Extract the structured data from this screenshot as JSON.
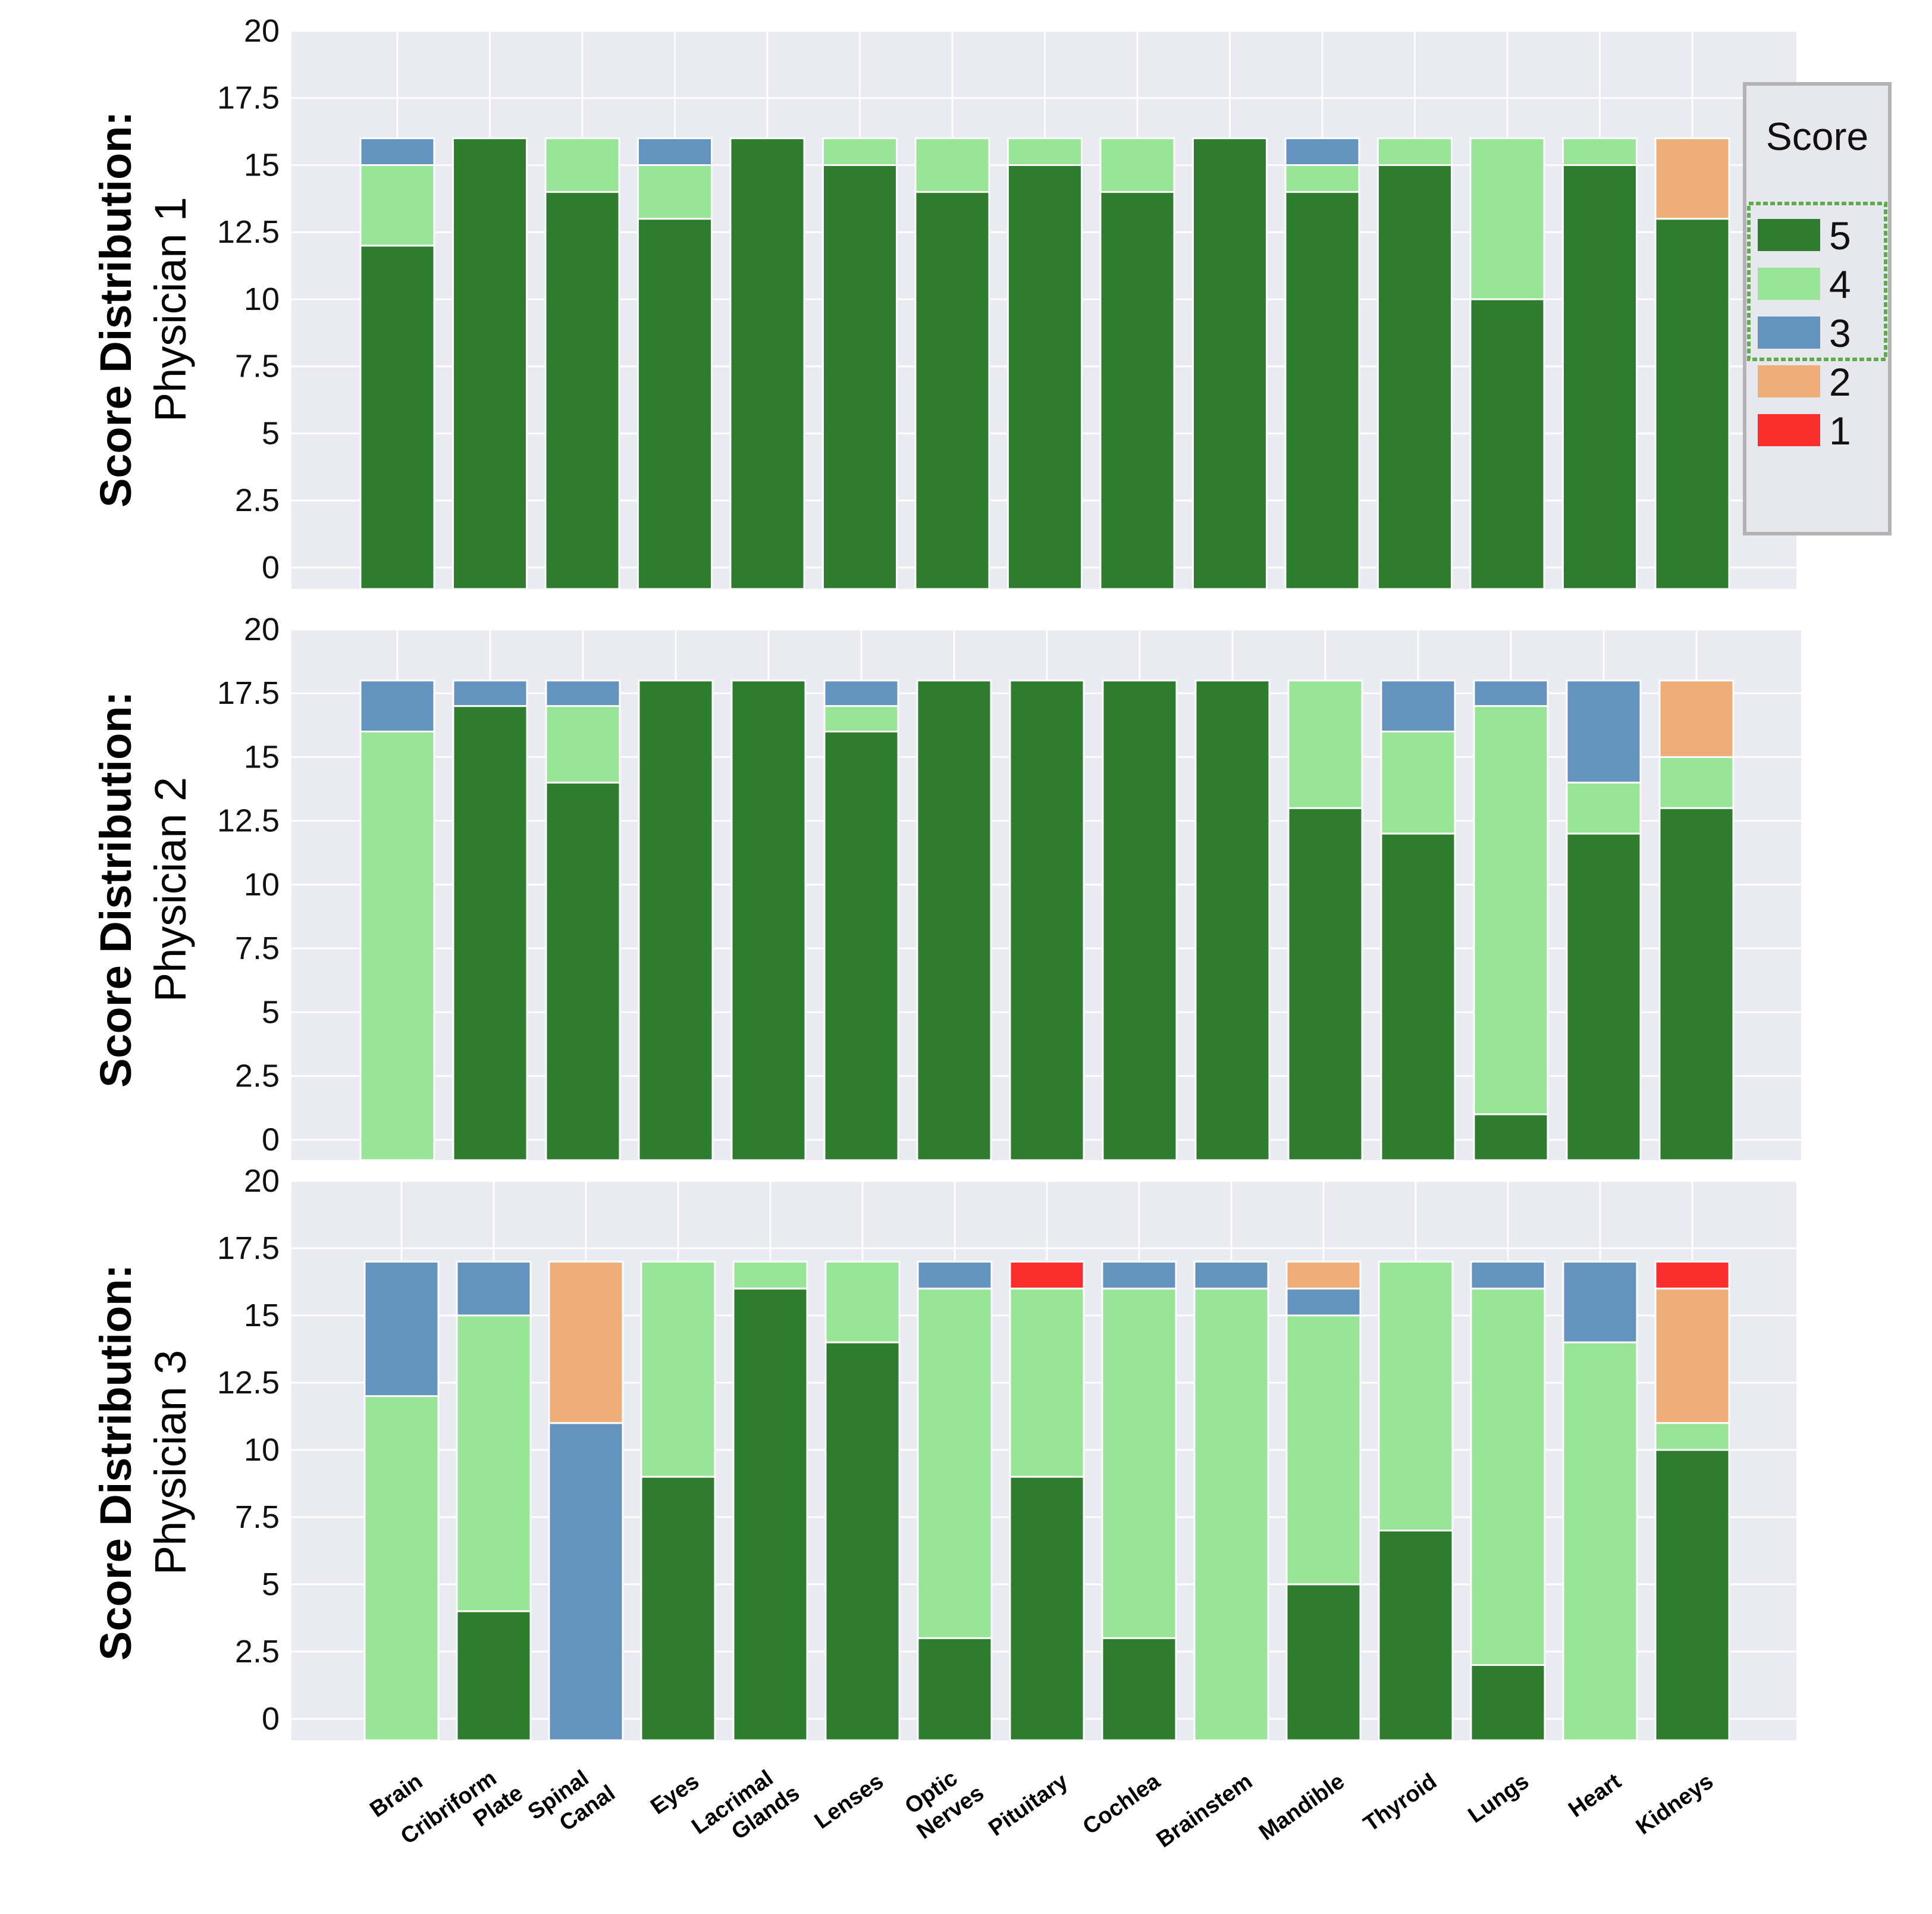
{
  "chart_data": {
    "type": "bar",
    "stacked": true,
    "categories": [
      "Brain",
      "Cribriform Plate",
      "Spinal Canal",
      "Eyes",
      "Lacrimal Glands",
      "Lenses",
      "Optic Nerves",
      "Pituitary",
      "Cochlea",
      "Brainstem",
      "Mandible",
      "Thyroid",
      "Lungs",
      "Heart",
      "Kidneys"
    ],
    "y_ticks": [
      "0",
      "2.5",
      "5",
      "7.5",
      "10",
      "12.5",
      "15",
      "17.5",
      "20"
    ],
    "legend": {
      "title": "Score",
      "entries": [
        {
          "label": "5",
          "color": "#2e7d2e"
        },
        {
          "label": "4",
          "color": "#98e598"
        },
        {
          "label": "3",
          "color": "#6493c0"
        },
        {
          "label": "2",
          "color": "#efad78"
        },
        {
          "label": "1",
          "color": "#fb2d2d"
        }
      ]
    },
    "panels": [
      {
        "ylabel_bold": "Score Distribution:",
        "ylabel": "Physician 1",
        "ylim": [
          -0.8,
          20
        ],
        "series": [
          {
            "name": "5",
            "values": [
              12,
              16,
              14,
              13,
              16,
              15,
              14,
              15,
              14,
              16,
              14,
              15,
              10,
              15,
              13
            ]
          },
          {
            "name": "4",
            "values": [
              3,
              0,
              2,
              2,
              0,
              1,
              2,
              1,
              2,
              0,
              1,
              1,
              6,
              1,
              0
            ]
          },
          {
            "name": "3",
            "values": [
              1,
              0,
              0,
              1,
              0,
              0,
              0,
              0,
              0,
              0,
              1,
              0,
              0,
              0,
              0
            ]
          },
          {
            "name": "2",
            "values": [
              0,
              0,
              0,
              0,
              0,
              0,
              0,
              0,
              0,
              0,
              0,
              0,
              0,
              0,
              3
            ]
          },
          {
            "name": "1",
            "values": [
              0,
              0,
              0,
              0,
              0,
              0,
              0,
              0,
              0,
              0,
              0,
              0,
              0,
              0,
              0
            ]
          }
        ]
      },
      {
        "ylabel_bold": "Score Distribution:",
        "ylabel": "Physician 2",
        "ylim": [
          -0.8,
          20
        ],
        "series": [
          {
            "name": "5",
            "values": [
              0,
              17,
              14,
              18,
              18,
              16,
              18,
              18,
              18,
              18,
              13,
              12,
              1,
              12,
              13
            ]
          },
          {
            "name": "4",
            "values": [
              16,
              0,
              3,
              0,
              0,
              1,
              0,
              0,
              0,
              0,
              5,
              4,
              16,
              2,
              2
            ]
          },
          {
            "name": "3",
            "values": [
              2,
              1,
              1,
              0,
              0,
              1,
              0,
              0,
              0,
              0,
              0,
              2,
              1,
              4,
              0
            ]
          },
          {
            "name": "2",
            "values": [
              0,
              0,
              0,
              0,
              0,
              0,
              0,
              0,
              0,
              0,
              0,
              0,
              0,
              0,
              3
            ]
          },
          {
            "name": "1",
            "values": [
              0,
              0,
              0,
              0,
              0,
              0,
              0,
              0,
              0,
              0,
              0,
              0,
              0,
              0,
              0
            ]
          }
        ]
      },
      {
        "ylabel_bold": "Score Distribution:",
        "ylabel": "Physician 3",
        "ylim": [
          -0.8,
          20
        ],
        "series": [
          {
            "name": "5",
            "values": [
              0,
              4,
              0,
              9,
              16,
              14,
              3,
              9,
              3,
              0,
              5,
              7,
              2,
              0,
              10
            ]
          },
          {
            "name": "4",
            "values": [
              12,
              11,
              0,
              8,
              1,
              3,
              13,
              7,
              13,
              16,
              10,
              10,
              14,
              14,
              1
            ]
          },
          {
            "name": "3",
            "values": [
              5,
              2,
              11,
              0,
              0,
              0,
              1,
              0,
              1,
              1,
              1,
              0,
              1,
              3,
              0
            ]
          },
          {
            "name": "2",
            "values": [
              0,
              0,
              6,
              0,
              0,
              0,
              0,
              0,
              0,
              0,
              1,
              0,
              0,
              0,
              5
            ]
          },
          {
            "name": "1",
            "values": [
              0,
              0,
              0,
              0,
              0,
              0,
              0,
              1,
              0,
              0,
              0,
              0,
              0,
              0,
              1
            ]
          }
        ]
      }
    ]
  }
}
